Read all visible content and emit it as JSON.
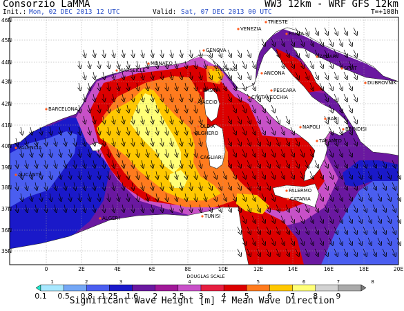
{
  "header": {
    "title_left": "Consorzio LaMMA",
    "title_right": "WW3 12km - WRF GFS 12km",
    "init_label": "Init.:",
    "init_value": "Mon, 02 DEC 2013  12 UTC",
    "valid_label": "Valid:",
    "valid_value": "Sat, 07 DEC 2013  00 UTC",
    "lead": "T=+108h"
  },
  "map": {
    "lat_labels": [
      "46N",
      "45N",
      "44N",
      "43N",
      "42N",
      "41N",
      "40N",
      "39N",
      "38N",
      "37N",
      "36N",
      "35N"
    ],
    "lon_labels": [
      "0",
      "2E",
      "4E",
      "6E",
      "8E",
      "10E",
      "12E",
      "14E",
      "16E",
      "18E",
      "20E"
    ],
    "cities": [
      "TRIESTE",
      "VENEZIA",
      "FIUMA",
      "ZADAR",
      "SPLIT",
      "DUBROVNIK",
      "MONACO",
      "GENOVA",
      "MARSEILLE",
      "LIVORNO",
      "ANCONA",
      "PESCARA",
      "BASTIA",
      "AJACCIO",
      "CIVITAVECCHIA",
      "BARCELONA",
      "NAPOLI",
      "BARI",
      "BRINDISI",
      "OLBIA",
      "ALGHERO",
      "TARANTO",
      "VALENCIA",
      "CAGLIARI",
      "ALICANTE",
      "PALERMO",
      "CATANIA",
      "TUNISI",
      "ALGERI"
    ],
    "city_color": "#000000"
  },
  "colorbar": {
    "douglas_label": "DOUGLAS SCALE",
    "douglas_numbers": [
      "1",
      "2",
      "3",
      "4",
      "5",
      "6",
      "7",
      "8"
    ],
    "values": [
      "0.1",
      "0.5",
      "0.8",
      "1.25",
      "1.6",
      "2",
      "2.5",
      "3",
      "4",
      "5",
      "6",
      "7",
      "8",
      "9"
    ],
    "colors": [
      "#1ee3c8",
      "#a8e8ff",
      "#74a7f5",
      "#4a5ef0",
      "#1a19c9",
      "#6a18a0",
      "#a01898",
      "#c850c8",
      "#e61e40",
      "#dc0000",
      "#ff7b1e",
      "#ffc800",
      "#ffff78",
      "#d2d2d2",
      "#aaaaaa",
      "#7a7a7a"
    ]
  },
  "footer": "Significant Wave Height [m] + Mean Wave Direction"
}
